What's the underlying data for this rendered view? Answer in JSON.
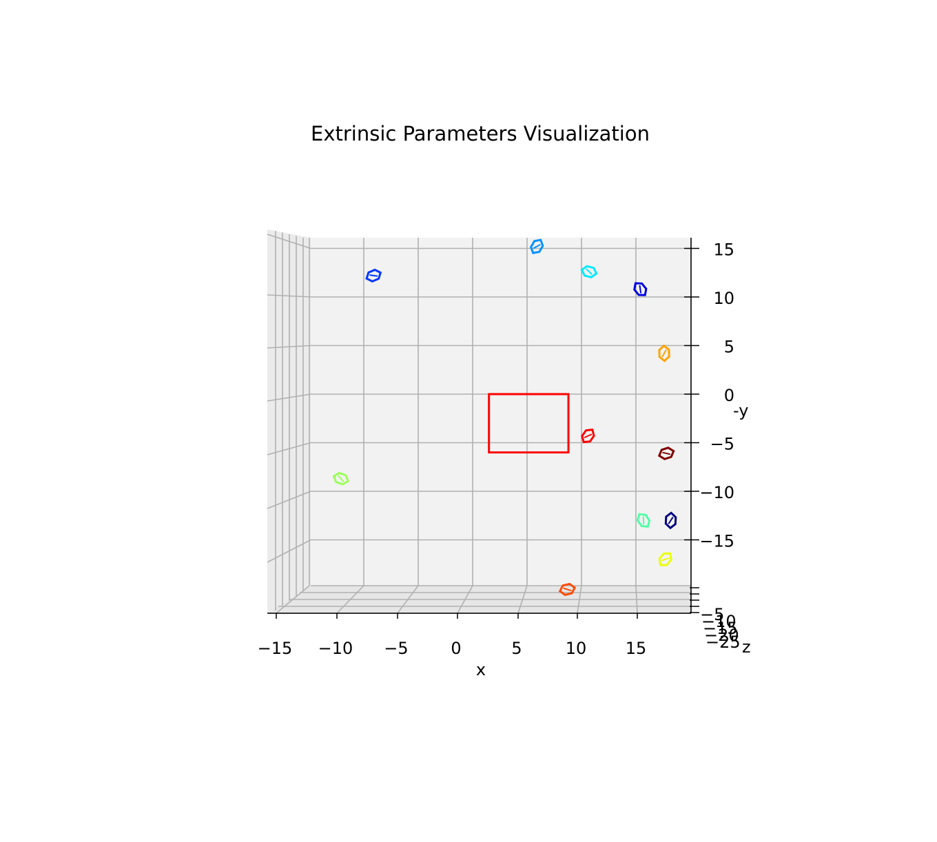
{
  "chart_data": {
    "type": "scatter",
    "title": "Extrinsic Parameters Visualization",
    "xlabel": "x",
    "ylabel": "-y",
    "zlabel": "z",
    "xlim": [
      -16,
      20
    ],
    "ylim": [
      -19,
      16
    ],
    "x_ticks": [
      "−15",
      "−10",
      "−5",
      "0",
      "5",
      "10",
      "15"
    ],
    "y_ticks": [
      "15",
      "10",
      "5",
      "0",
      "−5",
      "−10",
      "−15"
    ],
    "z_ticks": [
      "−5",
      "−10",
      "−15",
      "−20",
      "−25"
    ],
    "grid": true,
    "board": {
      "color": "#ff0000",
      "x": [
        1.5,
        8.8
      ],
      "y": [
        -6,
        0
      ]
    },
    "cameras": [
      {
        "x": 5.9,
        "y": 15.2,
        "color": "#0091ff"
      },
      {
        "x": -9.1,
        "y": 12.2,
        "color": "#0036ff"
      },
      {
        "x": 10.7,
        "y": 12.6,
        "color": "#00eaff"
      },
      {
        "x": 15.4,
        "y": 10.8,
        "color": "#0000e0"
      },
      {
        "x": 17.6,
        "y": 4.2,
        "color": "#ffa300"
      },
      {
        "x": 10.6,
        "y": -4.3,
        "color": "#ff0000"
      },
      {
        "x": 17.8,
        "y": -6.1,
        "color": "#7f0000"
      },
      {
        "x": -12.1,
        "y": -8.7,
        "color": "#9cff5a"
      },
      {
        "x": 15.7,
        "y": -13.0,
        "color": "#51ffa6"
      },
      {
        "x": 18.2,
        "y": -13.0,
        "color": "#000080"
      },
      {
        "x": 17.7,
        "y": -17.0,
        "color": "#eaff0d"
      },
      {
        "x": 8.7,
        "y": -20.1,
        "color": "#ff4a00"
      }
    ]
  }
}
